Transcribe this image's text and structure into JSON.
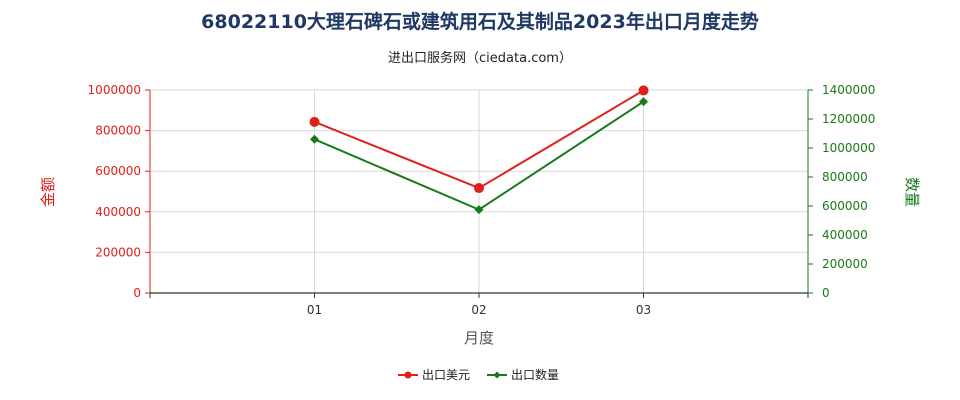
{
  "chart_data": {
    "type": "line",
    "title": "68022110大理石碑石或建筑用石及其制品2023年出口月度走势",
    "subtitle": "进出口服务网（ciedata.com）",
    "xlabel": "月度",
    "ylabel_left": "金额",
    "ylabel_right": "数量",
    "categories": [
      "01",
      "02",
      "03"
    ],
    "y_left_lim": [
      0,
      1000000
    ],
    "y_right_lim": [
      0,
      1400000
    ],
    "y_left_ticks": [
      "0",
      "200000",
      "400000",
      "600000",
      "800000",
      "1000000"
    ],
    "y_right_ticks": [
      "0",
      "200000",
      "400000",
      "600000",
      "800000",
      "1000000",
      "1200000",
      "1400000"
    ],
    "grid": true,
    "legend_position": "bottom-center",
    "series": [
      {
        "name": "出口美元",
        "axis": "left",
        "color": "#e0201b",
        "marker": "circle",
        "values": [
          843000,
          517000,
          998000
        ]
      },
      {
        "name": "出口数量",
        "axis": "right",
        "color": "#1a7a1a",
        "marker": "diamond",
        "values": [
          1060000,
          575000,
          1320000
        ]
      }
    ]
  }
}
